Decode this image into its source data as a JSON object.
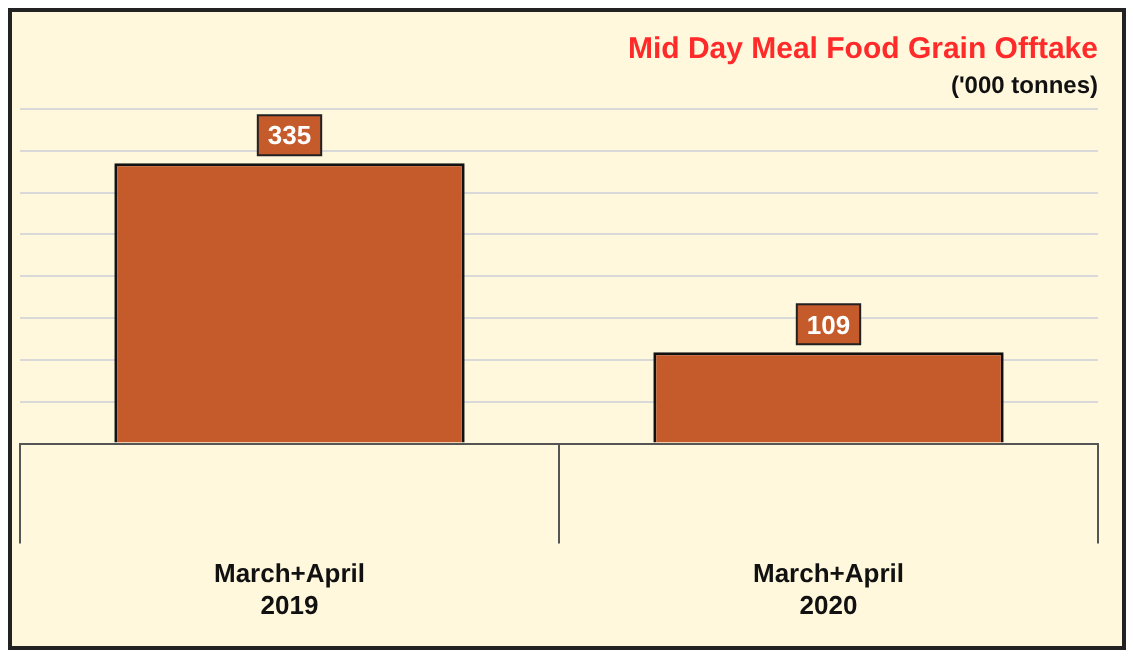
{
  "chart_data": {
    "type": "bar",
    "title": "Mid Day Meal Food Grain Offtake",
    "subtitle": "('000 tonnes)",
    "categories": [
      "March+April\n2019",
      "March+April\n2020"
    ],
    "values": [
      335,
      109
    ],
    "color": "#c55a2b",
    "data_labels": true,
    "grid": "y",
    "tick_labels": "x",
    "legend": false
  }
}
